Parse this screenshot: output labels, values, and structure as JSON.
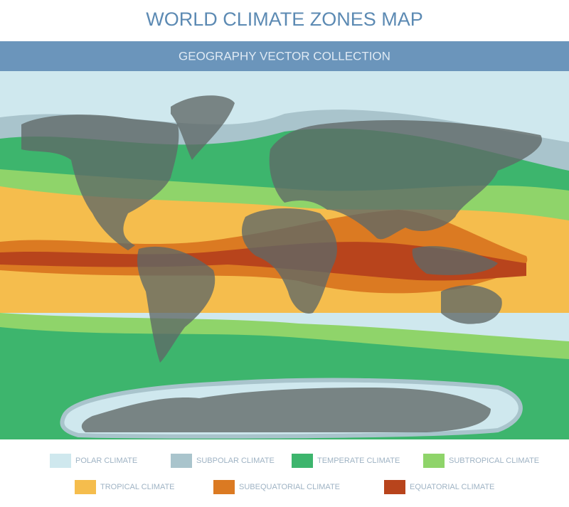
{
  "header": {
    "title": "WORLD CLIMATE ZONES MAP",
    "subtitle": "GEOGRAPHY VECTOR COLLECTION"
  },
  "legend": [
    {
      "label": "POLAR CLIMATE",
      "color": "#cfe8ee"
    },
    {
      "label": "SUBPOLAR CLIMATE",
      "color": "#a9c4cc"
    },
    {
      "label": "TEMPERATE CLIMATE",
      "color": "#3db56d"
    },
    {
      "label": "SUBTROPICAL CLIMATE",
      "color": "#8fd46a"
    },
    {
      "label": "TROPICAL CLIMATE",
      "color": "#f5bd4d"
    },
    {
      "label": "SUBEQUATORIAL CLIMATE",
      "color": "#db7a22"
    },
    {
      "label": "EQUATORIAL CLIMATE",
      "color": "#b8441c"
    }
  ]
}
